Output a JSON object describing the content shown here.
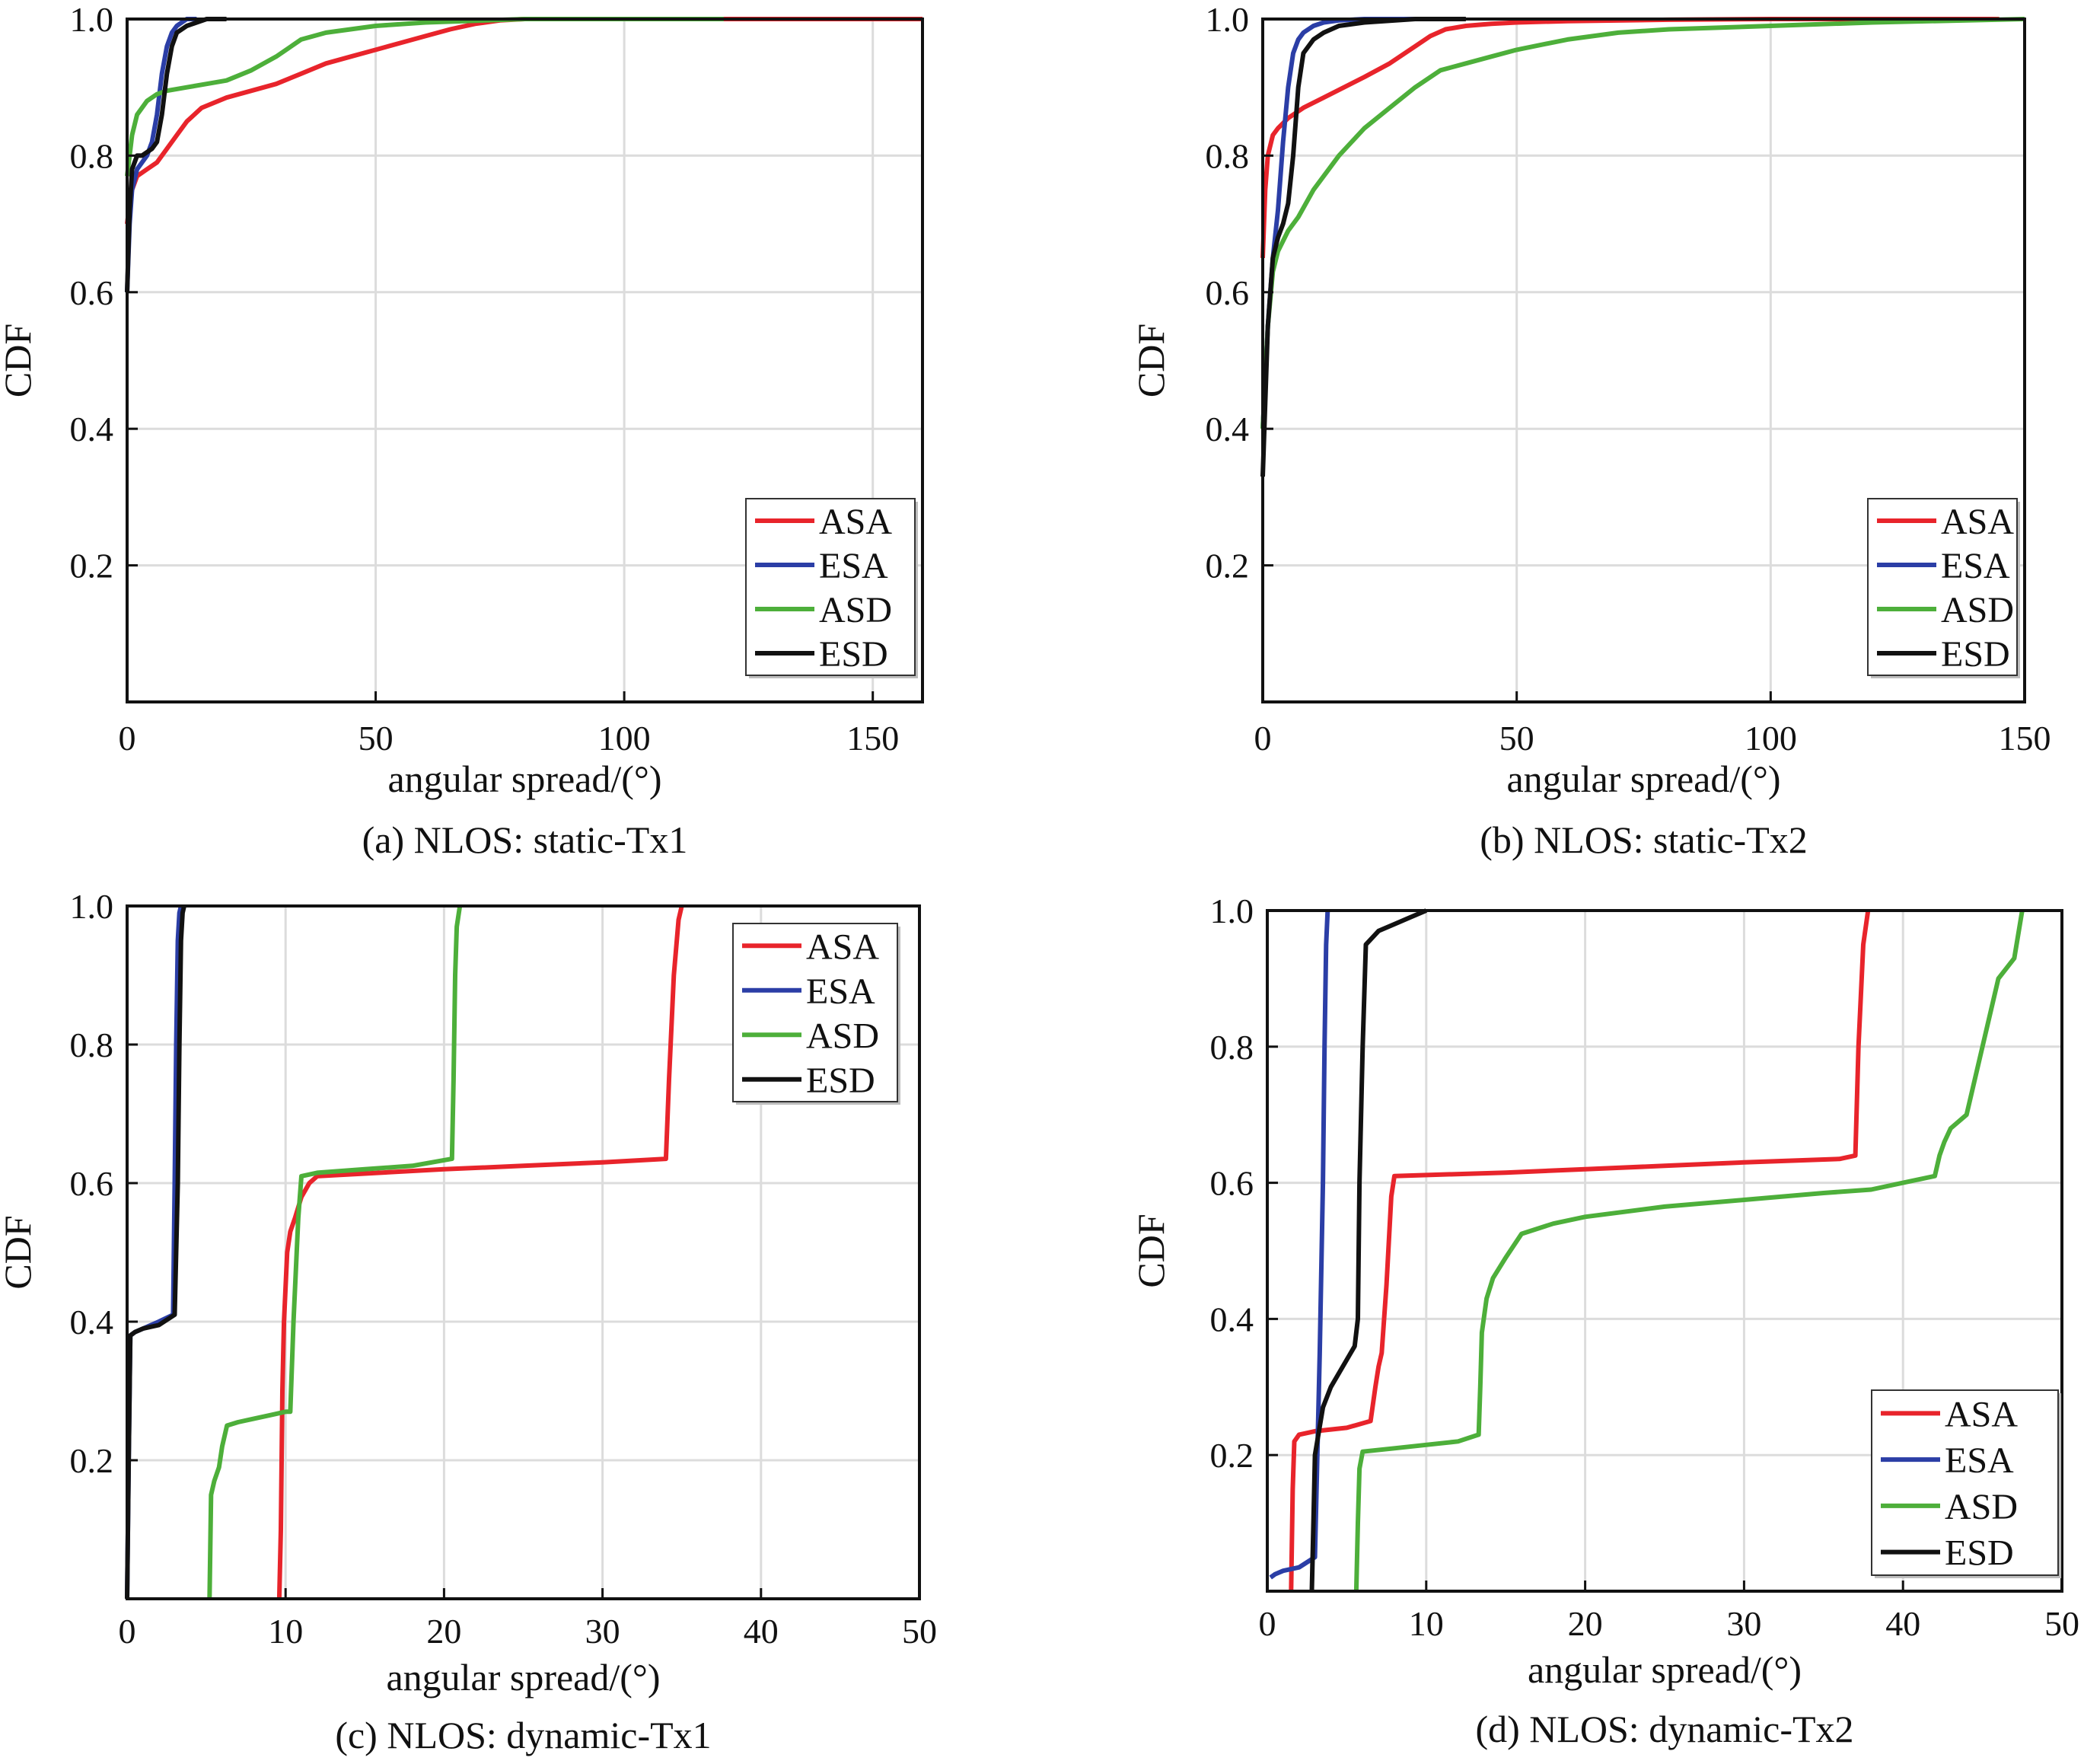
{
  "chart_data": [
    {
      "type": "line",
      "caption": "(a) NLOS: static-Tx1",
      "xlabel": "angular spread/(°)",
      "ylabel": "CDF",
      "xlim": [
        0,
        160
      ],
      "ylim": [
        0,
        1
      ],
      "xticks": [
        0,
        50,
        100,
        150
      ],
      "yticks": [
        0.2,
        0.4,
        0.6,
        0.8,
        1.0
      ],
      "grid": true,
      "legend_position": "bottom-right",
      "series": [
        {
          "name": "ASA",
          "color": "#e8242b",
          "x": [
            0,
            0.5,
            1,
            2,
            4,
            6,
            8,
            10,
            12,
            15,
            20,
            25,
            30,
            35,
            40,
            45,
            50,
            55,
            60,
            65,
            70,
            75,
            80,
            160
          ],
          "y": [
            0.7,
            0.73,
            0.75,
            0.77,
            0.78,
            0.79,
            0.81,
            0.83,
            0.85,
            0.87,
            0.885,
            0.895,
            0.905,
            0.92,
            0.935,
            0.945,
            0.955,
            0.965,
            0.975,
            0.985,
            0.993,
            0.998,
            1.0,
            1.0
          ]
        },
        {
          "name": "ESA",
          "color": "#2b3ea6",
          "x": [
            0,
            0.5,
            1,
            2,
            3,
            4,
            5,
            6,
            7,
            8,
            9,
            10,
            11,
            12,
            14
          ],
          "y": [
            0.6,
            0.7,
            0.75,
            0.78,
            0.79,
            0.8,
            0.82,
            0.86,
            0.92,
            0.96,
            0.98,
            0.99,
            0.995,
            1.0,
            1.0
          ]
        },
        {
          "name": "ASD",
          "color": "#4daf3a",
          "x": [
            0,
            0.5,
            1,
            2,
            4,
            6,
            8,
            12,
            16,
            20,
            25,
            30,
            35,
            40,
            50,
            60,
            80,
            120
          ],
          "y": [
            0.77,
            0.8,
            0.83,
            0.86,
            0.88,
            0.89,
            0.895,
            0.9,
            0.905,
            0.91,
            0.925,
            0.945,
            0.97,
            0.98,
            0.99,
            0.995,
            1.0,
            1.0
          ]
        },
        {
          "name": "ESD",
          "color": "#111111",
          "x": [
            0,
            0.5,
            1,
            2,
            3,
            5,
            6,
            7,
            8,
            9,
            10,
            12,
            14,
            16,
            20
          ],
          "y": [
            0.6,
            0.72,
            0.78,
            0.8,
            0.8,
            0.81,
            0.82,
            0.86,
            0.92,
            0.96,
            0.98,
            0.99,
            0.995,
            1.0,
            1.0
          ]
        }
      ]
    },
    {
      "type": "line",
      "caption": "(b) NLOS: static-Tx2",
      "xlabel": "angular spread/(°)",
      "ylabel": "CDF",
      "xlim": [
        0,
        150
      ],
      "ylim": [
        0,
        1
      ],
      "xticks": [
        0,
        50,
        100,
        150
      ],
      "yticks": [
        0.2,
        0.4,
        0.6,
        0.8,
        1.0
      ],
      "grid": true,
      "legend_position": "bottom-right",
      "series": [
        {
          "name": "ASA",
          "color": "#e8242b",
          "x": [
            0,
            0.5,
            1,
            2,
            3,
            5,
            8,
            12,
            16,
            20,
            25,
            30,
            33,
            36,
            40,
            45,
            50,
            60,
            80,
            100,
            145
          ],
          "y": [
            0.65,
            0.75,
            0.8,
            0.83,
            0.84,
            0.855,
            0.87,
            0.885,
            0.9,
            0.915,
            0.935,
            0.96,
            0.975,
            0.985,
            0.99,
            0.993,
            0.995,
            0.997,
            0.999,
            1.0,
            1.0
          ]
        },
        {
          "name": "ESA",
          "color": "#2b3ea6",
          "x": [
            0,
            1,
            2,
            3,
            4,
            5,
            6,
            7,
            8,
            10,
            12,
            15,
            20,
            30
          ],
          "y": [
            0.4,
            0.55,
            0.65,
            0.72,
            0.82,
            0.9,
            0.95,
            0.97,
            0.98,
            0.99,
            0.995,
            0.998,
            1.0,
            1.0
          ]
        },
        {
          "name": "ASD",
          "color": "#4daf3a",
          "x": [
            0,
            1,
            2,
            3,
            5,
            7,
            10,
            12,
            15,
            20,
            25,
            30,
            35,
            40,
            45,
            50,
            60,
            70,
            80,
            100,
            120,
            150
          ],
          "y": [
            0.4,
            0.55,
            0.63,
            0.66,
            0.69,
            0.71,
            0.75,
            0.77,
            0.8,
            0.84,
            0.87,
            0.9,
            0.925,
            0.935,
            0.945,
            0.955,
            0.97,
            0.98,
            0.985,
            0.99,
            0.995,
            1.0
          ]
        },
        {
          "name": "ESD",
          "color": "#111111",
          "x": [
            0,
            1,
            2,
            3,
            4,
            5,
            6,
            7,
            8,
            10,
            12,
            15,
            20,
            30,
            40
          ],
          "y": [
            0.33,
            0.55,
            0.65,
            0.68,
            0.7,
            0.73,
            0.8,
            0.9,
            0.95,
            0.97,
            0.98,
            0.99,
            0.995,
            1.0,
            1.0
          ]
        }
      ]
    },
    {
      "type": "line",
      "caption": "(c) NLOS: dynamic-Tx1",
      "xlabel": "angular spread/(°)",
      "ylabel": "CDF",
      "xlim": [
        0,
        50
      ],
      "ylim": [
        0,
        1
      ],
      "xticks": [
        0,
        10,
        20,
        30,
        40,
        50
      ],
      "yticks": [
        0.2,
        0.4,
        0.6,
        0.8,
        1.0
      ],
      "grid": true,
      "legend_position": "top-right",
      "series": [
        {
          "name": "ASA",
          "color": "#e8242b",
          "x": [
            9.6,
            9.7,
            9.8,
            9.9,
            10.0,
            10.1,
            10.3,
            10.6,
            11.0,
            11.5,
            12.0,
            20.0,
            25.0,
            30.0,
            34.0,
            34.2,
            34.5,
            34.8,
            35.0
          ],
          "y": [
            0.0,
            0.1,
            0.3,
            0.4,
            0.45,
            0.5,
            0.53,
            0.55,
            0.58,
            0.6,
            0.61,
            0.62,
            0.625,
            0.63,
            0.635,
            0.75,
            0.9,
            0.98,
            1.0
          ]
        },
        {
          "name": "ESA",
          "color": "#2b3ea6",
          "x": [
            0.0,
            0.1,
            0.2,
            0.5,
            1.0,
            2.0,
            2.9,
            3.0,
            3.1,
            3.2,
            3.3,
            3.4
          ],
          "y": [
            0.0,
            0.2,
            0.38,
            0.385,
            0.39,
            0.4,
            0.41,
            0.6,
            0.8,
            0.95,
            0.99,
            1.0
          ]
        },
        {
          "name": "ASD",
          "color": "#4daf3a",
          "x": [
            5.2,
            5.3,
            5.5,
            5.8,
            6.0,
            6.3,
            7.0,
            8.0,
            9.0,
            10.0,
            10.3,
            10.5,
            10.8,
            11.0,
            12.0,
            15.0,
            18.0,
            20.5,
            20.6,
            20.7,
            20.8,
            21.0
          ],
          "y": [
            0.0,
            0.15,
            0.17,
            0.19,
            0.22,
            0.25,
            0.255,
            0.26,
            0.265,
            0.27,
            0.27,
            0.4,
            0.55,
            0.61,
            0.615,
            0.62,
            0.625,
            0.635,
            0.75,
            0.9,
            0.97,
            1.0
          ]
        },
        {
          "name": "ESD",
          "color": "#111111",
          "x": [
            0.0,
            0.1,
            0.2,
            0.5,
            1.0,
            2.0,
            3.0,
            3.2,
            3.3,
            3.4,
            3.5,
            3.6
          ],
          "y": [
            0.0,
            0.2,
            0.38,
            0.385,
            0.39,
            0.395,
            0.41,
            0.6,
            0.8,
            0.95,
            0.99,
            1.0
          ]
        }
      ]
    },
    {
      "type": "line",
      "caption": "(d) NLOS: dynamic-Tx2",
      "xlabel": "angular spread/(°)",
      "ylabel": "CDF",
      "xlim": [
        0,
        50
      ],
      "ylim": [
        0,
        1
      ],
      "xticks": [
        0,
        10,
        20,
        30,
        40,
        50
      ],
      "yticks": [
        0.2,
        0.4,
        0.6,
        0.8,
        1.0
      ],
      "grid": true,
      "legend_position": "bottom-right",
      "series": [
        {
          "name": "ASA",
          "color": "#e8242b",
          "x": [
            1.5,
            1.6,
            1.7,
            2.0,
            3.0,
            5.0,
            6.5,
            6.8,
            7.0,
            7.2,
            7.5,
            7.8,
            8.0,
            15.0,
            20.0,
            25.0,
            30.0,
            36.0,
            37.0,
            37.2,
            37.5,
            37.8
          ],
          "y": [
            0.0,
            0.15,
            0.22,
            0.23,
            0.235,
            0.24,
            0.25,
            0.3,
            0.33,
            0.35,
            0.45,
            0.58,
            0.61,
            0.615,
            0.62,
            0.625,
            0.63,
            0.635,
            0.64,
            0.8,
            0.95,
            1.0
          ]
        },
        {
          "name": "ESA",
          "color": "#2b3ea6",
          "x": [
            0.2,
            0.5,
            1.0,
            2.0,
            3.0,
            3.2,
            3.3,
            3.5,
            3.6,
            3.7,
            3.8
          ],
          "y": [
            0.02,
            0.025,
            0.03,
            0.035,
            0.05,
            0.25,
            0.35,
            0.6,
            0.8,
            0.95,
            1.0
          ]
        },
        {
          "name": "ASD",
          "color": "#4daf3a",
          "x": [
            5.6,
            5.7,
            5.8,
            6.0,
            8.0,
            10.0,
            12.0,
            13.3,
            13.4,
            13.5,
            13.8,
            14.2,
            15.0,
            16.0,
            18.0,
            20.0,
            25.0,
            30.0,
            35.0,
            38.0,
            40.0,
            42.0,
            42.3,
            42.6,
            43.0,
            44.0,
            45.0,
            46.0,
            47.0,
            47.5
          ],
          "y": [
            0.0,
            0.1,
            0.18,
            0.205,
            0.21,
            0.215,
            0.22,
            0.23,
            0.3,
            0.38,
            0.43,
            0.46,
            0.49,
            0.525,
            0.54,
            0.55,
            0.565,
            0.575,
            0.585,
            0.59,
            0.6,
            0.61,
            0.64,
            0.66,
            0.68,
            0.7,
            0.8,
            0.9,
            0.93,
            1.0
          ]
        },
        {
          "name": "ESD",
          "color": "#111111",
          "x": [
            2.8,
            2.9,
            3.0,
            3.5,
            4.0,
            5.0,
            5.5,
            5.7,
            5.8,
            6.0,
            6.2,
            7.0,
            8.0,
            9.0,
            10.0
          ],
          "y": [
            0.0,
            0.1,
            0.2,
            0.27,
            0.3,
            0.34,
            0.36,
            0.4,
            0.6,
            0.8,
            0.95,
            0.97,
            0.98,
            0.99,
            1.0
          ]
        }
      ]
    }
  ]
}
